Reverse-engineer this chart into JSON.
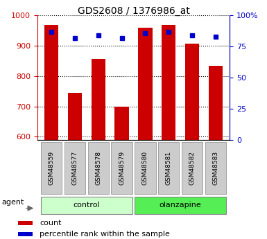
{
  "title": "GDS2608 / 1376986_at",
  "categories": [
    "GSM48559",
    "GSM48577",
    "GSM48578",
    "GSM48579",
    "GSM48580",
    "GSM48581",
    "GSM48582",
    "GSM48583"
  ],
  "red_values": [
    970,
    745,
    858,
    700,
    960,
    968,
    907,
    835
  ],
  "blue_values": [
    87,
    82,
    84,
    82,
    86,
    87,
    84,
    83
  ],
  "ylim_left": [
    590,
    1000
  ],
  "ylim_right": [
    0,
    100
  ],
  "yticks_left": [
    600,
    700,
    800,
    900,
    1000
  ],
  "yticks_right": [
    0,
    25,
    50,
    75,
    100
  ],
  "ytick_right_labels": [
    "0",
    "25",
    "50",
    "75",
    "100%"
  ],
  "groups": [
    {
      "label": "control",
      "indices": [
        0,
        1,
        2,
        3
      ],
      "color": "#ccffcc"
    },
    {
      "label": "olanzapine",
      "indices": [
        4,
        5,
        6,
        7
      ],
      "color": "#55ee55"
    }
  ],
  "bar_color": "#cc0000",
  "dot_color": "#0000cc",
  "agent_label": "agent",
  "legend_red": "count",
  "legend_blue": "percentile rank within the sample",
  "title_color": "#000000",
  "left_axis_color": "#cc0000",
  "right_axis_color": "#0000cc",
  "bar_width": 0.6,
  "tick_box_color": "#cccccc"
}
